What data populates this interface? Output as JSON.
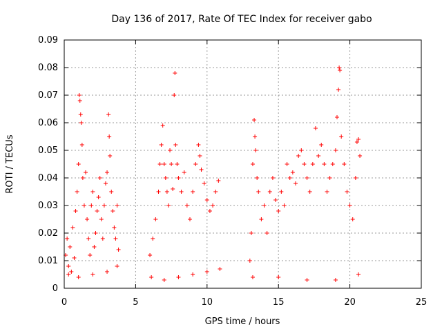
{
  "chart_data": {
    "type": "scatter",
    "title": "Day 136 of 2017, Rate Of TEC Index for receiver gabo",
    "xlabel": "GPS time / hours",
    "ylabel": "ROTI / TECUs",
    "xlim": [
      0,
      25
    ],
    "ylim": [
      0,
      0.09
    ],
    "xticks": [
      0,
      5,
      10,
      15,
      20,
      25
    ],
    "xtick_labels": [
      "0",
      "5",
      "10",
      "15",
      "20",
      "25"
    ],
    "yticks": [
      0,
      0.01,
      0.02,
      0.03,
      0.04,
      0.05,
      0.06,
      0.07,
      0.08,
      0.09
    ],
    "ytick_labels": [
      "0",
      "0.01",
      "0.02",
      "0.03",
      "0.04",
      "0.05",
      "0.06",
      "0.07",
      "0.08",
      "0.09"
    ],
    "grid": true,
    "marker": "+",
    "marker_color": "#ff0000",
    "points": [
      [
        0.1,
        0.012
      ],
      [
        0.2,
        0.018
      ],
      [
        0.3,
        0.008
      ],
      [
        0.4,
        0.015
      ],
      [
        0.5,
        0.006
      ],
      [
        0.6,
        0.022
      ],
      [
        0.7,
        0.011
      ],
      [
        0.8,
        0.028
      ],
      [
        0.9,
        0.035
      ],
      [
        1.0,
        0.045
      ],
      [
        1.05,
        0.07
      ],
      [
        1.1,
        0.068
      ],
      [
        1.15,
        0.063
      ],
      [
        1.2,
        0.06
      ],
      [
        1.25,
        0.052
      ],
      [
        1.3,
        0.04
      ],
      [
        1.4,
        0.03
      ],
      [
        1.5,
        0.042
      ],
      [
        1.6,
        0.025
      ],
      [
        1.7,
        0.018
      ],
      [
        1.8,
        0.012
      ],
      [
        1.9,
        0.03
      ],
      [
        2.0,
        0.035
      ],
      [
        2.1,
        0.015
      ],
      [
        2.2,
        0.02
      ],
      [
        2.3,
        0.028
      ],
      [
        2.4,
        0.033
      ],
      [
        2.5,
        0.04
      ],
      [
        2.6,
        0.025
      ],
      [
        2.7,
        0.018
      ],
      [
        2.8,
        0.03
      ],
      [
        2.9,
        0.038
      ],
      [
        3.0,
        0.042
      ],
      [
        3.1,
        0.063
      ],
      [
        3.15,
        0.055
      ],
      [
        3.2,
        0.048
      ],
      [
        3.3,
        0.035
      ],
      [
        3.4,
        0.028
      ],
      [
        3.5,
        0.022
      ],
      [
        3.6,
        0.018
      ],
      [
        3.7,
        0.03
      ],
      [
        3.8,
        0.014
      ],
      [
        0.3,
        0.005
      ],
      [
        1.0,
        0.004
      ],
      [
        2.0,
        0.005
      ],
      [
        3.0,
        0.006
      ],
      [
        3.7,
        0.008
      ],
      [
        6.0,
        0.012
      ],
      [
        6.2,
        0.018
      ],
      [
        6.4,
        0.025
      ],
      [
        6.6,
        0.035
      ],
      [
        6.7,
        0.045
      ],
      [
        6.8,
        0.052
      ],
      [
        6.9,
        0.059
      ],
      [
        7.0,
        0.045
      ],
      [
        7.1,
        0.04
      ],
      [
        7.2,
        0.035
      ],
      [
        7.3,
        0.03
      ],
      [
        7.4,
        0.05
      ],
      [
        7.5,
        0.045
      ],
      [
        7.6,
        0.036
      ],
      [
        7.7,
        0.07
      ],
      [
        7.75,
        0.078
      ],
      [
        7.8,
        0.052
      ],
      [
        7.9,
        0.045
      ],
      [
        8.0,
        0.04
      ],
      [
        8.2,
        0.035
      ],
      [
        8.4,
        0.042
      ],
      [
        8.6,
        0.03
      ],
      [
        8.8,
        0.025
      ],
      [
        9.0,
        0.035
      ],
      [
        9.2,
        0.045
      ],
      [
        9.4,
        0.052
      ],
      [
        9.5,
        0.048
      ],
      [
        9.6,
        0.043
      ],
      [
        9.8,
        0.038
      ],
      [
        10.0,
        0.032
      ],
      [
        10.2,
        0.028
      ],
      [
        10.4,
        0.03
      ],
      [
        10.6,
        0.035
      ],
      [
        10.8,
        0.039
      ],
      [
        6.1,
        0.004
      ],
      [
        7.0,
        0.003
      ],
      [
        8.0,
        0.004
      ],
      [
        9.0,
        0.005
      ],
      [
        10.0,
        0.006
      ],
      [
        10.9,
        0.007
      ],
      [
        13.0,
        0.01
      ],
      [
        13.1,
        0.02
      ],
      [
        13.2,
        0.045
      ],
      [
        13.3,
        0.061
      ],
      [
        13.35,
        0.055
      ],
      [
        13.4,
        0.05
      ],
      [
        13.5,
        0.04
      ],
      [
        13.6,
        0.035
      ],
      [
        13.8,
        0.025
      ],
      [
        14.0,
        0.03
      ],
      [
        14.2,
        0.02
      ],
      [
        14.4,
        0.035
      ],
      [
        14.6,
        0.04
      ],
      [
        14.8,
        0.032
      ],
      [
        15.0,
        0.028
      ],
      [
        15.2,
        0.035
      ],
      [
        15.4,
        0.03
      ],
      [
        15.6,
        0.045
      ],
      [
        15.8,
        0.04
      ],
      [
        16.0,
        0.042
      ],
      [
        16.2,
        0.038
      ],
      [
        16.4,
        0.048
      ],
      [
        16.6,
        0.05
      ],
      [
        16.8,
        0.045
      ],
      [
        17.0,
        0.04
      ],
      [
        17.2,
        0.035
      ],
      [
        17.4,
        0.045
      ],
      [
        17.6,
        0.058
      ],
      [
        17.8,
        0.048
      ],
      [
        18.0,
        0.052
      ],
      [
        18.2,
        0.045
      ],
      [
        18.4,
        0.035
      ],
      [
        18.6,
        0.04
      ],
      [
        18.8,
        0.045
      ],
      [
        19.0,
        0.05
      ],
      [
        19.1,
        0.062
      ],
      [
        19.2,
        0.072
      ],
      [
        19.25,
        0.08
      ],
      [
        19.3,
        0.079
      ],
      [
        19.4,
        0.055
      ],
      [
        19.6,
        0.045
      ],
      [
        19.8,
        0.035
      ],
      [
        20.0,
        0.03
      ],
      [
        20.2,
        0.025
      ],
      [
        20.4,
        0.04
      ],
      [
        20.5,
        0.053
      ],
      [
        20.6,
        0.054
      ],
      [
        20.7,
        0.048
      ],
      [
        13.2,
        0.004
      ],
      [
        15.0,
        0.004
      ],
      [
        17.0,
        0.003
      ],
      [
        19.0,
        0.003
      ],
      [
        20.6,
        0.005
      ]
    ]
  }
}
